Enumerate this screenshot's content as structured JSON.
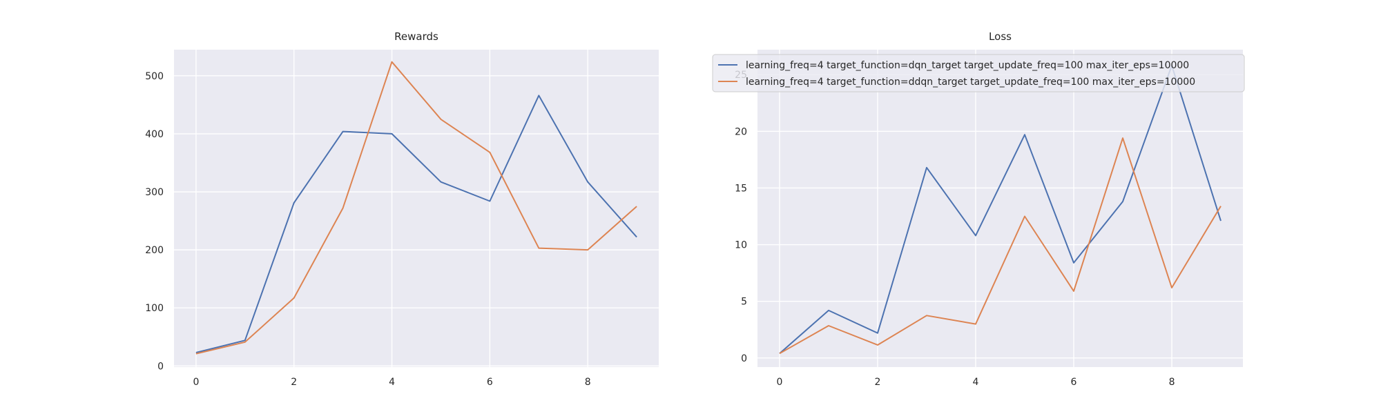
{
  "chart_data": [
    {
      "type": "line",
      "title": "Rewards",
      "xlabel": "",
      "ylabel": "",
      "x": [
        0,
        1,
        2,
        3,
        4,
        5,
        6,
        7,
        8,
        9
      ],
      "xlim": [
        -0.45,
        9.45
      ],
      "ylim": [
        -2,
        545
      ],
      "xticks": [
        0,
        2,
        4,
        6,
        8
      ],
      "yticks": [
        0,
        100,
        200,
        300,
        400,
        500
      ],
      "grid": true,
      "series": [
        {
          "color": "#4c72b0",
          "values": [
            23,
            44,
            281,
            404,
            400,
            317,
            284,
            466,
            317,
            222
          ]
        },
        {
          "color": "#dd8452",
          "values": [
            21,
            41,
            117,
            272,
            524,
            425,
            368,
            203,
            200,
            275
          ]
        }
      ]
    },
    {
      "type": "line",
      "title": "Loss",
      "xlabel": "",
      "ylabel": "",
      "x": [
        0,
        1,
        2,
        3,
        4,
        5,
        6,
        7,
        8,
        9
      ],
      "xlim": [
        -0.45,
        9.45
      ],
      "ylim": [
        -0.8,
        27.2
      ],
      "xticks": [
        0,
        2,
        4,
        6,
        8
      ],
      "yticks": [
        0,
        5,
        10,
        15,
        20,
        25
      ],
      "grid": true,
      "legend": "top-right",
      "series": [
        {
          "name": "learning_freq=4 target_function=dqn_target target_update_freq=100 max_iter_eps=10000",
          "color": "#4c72b0",
          "values": [
            0.4,
            4.2,
            2.2,
            16.8,
            10.8,
            19.7,
            8.4,
            13.8,
            25.8,
            12.1
          ]
        },
        {
          "name": "learning_freq=4 target_function=ddqn_target target_update_freq=100 max_iter_eps=10000",
          "color": "#dd8452",
          "values": [
            0.4,
            2.85,
            1.15,
            3.75,
            3.0,
            12.5,
            5.9,
            19.4,
            6.2,
            13.4
          ]
        }
      ]
    }
  ]
}
